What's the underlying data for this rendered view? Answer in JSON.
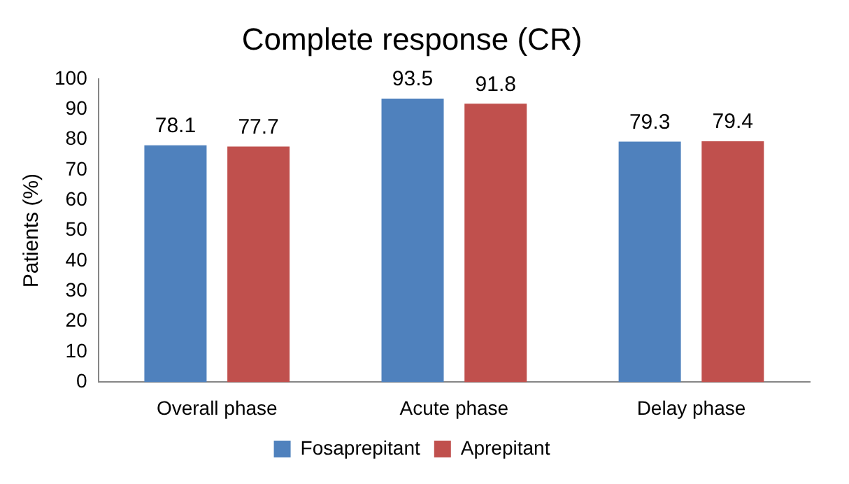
{
  "chart_data": {
    "type": "bar",
    "title": "Complete response (CR)",
    "ylabel": "Patients (%)",
    "categories": [
      "Overall phase",
      "Acute phase",
      "Delay phase"
    ],
    "series": [
      {
        "name": "Fosaprepitant",
        "color": "#4f81bd",
        "values": [
          78.1,
          93.5,
          79.3
        ]
      },
      {
        "name": "Aprepitant",
        "color": "#c0504d",
        "values": [
          77.7,
          91.8,
          79.4
        ]
      }
    ],
    "ylim": [
      0,
      100
    ],
    "yticks": [
      0,
      10,
      20,
      30,
      40,
      50,
      60,
      70,
      80,
      90,
      100
    ],
    "grid": false,
    "legend": "bottom",
    "data_labels": true
  }
}
